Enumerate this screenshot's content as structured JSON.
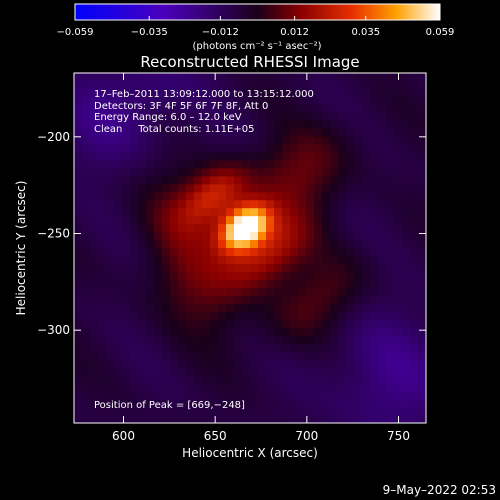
{
  "chart_data": {
    "type": "heatmap",
    "title": "Reconstructed RHESSI Image",
    "xlabel": "Heliocentric X (arcsec)",
    "ylabel": "Heliocentric Y (arcsec)",
    "xlim": [
      573,
      765
    ],
    "ylim": [
      -348,
      -167
    ],
    "xticks": [
      600,
      650,
      700,
      750
    ],
    "yticks": [
      -200,
      -250,
      -300
    ],
    "colorbar": {
      "min": -0.059,
      "max": 0.059,
      "ticks": [
        -0.059,
        -0.035,
        -0.012,
        0.012,
        0.035,
        0.059
      ],
      "tick_labels": [
        "−0.059",
        "−0.035",
        "−0.012",
        "0.012",
        "0.035",
        "0.059"
      ],
      "unit_label": "(photons cm⁻² s⁻¹ asec⁻²)"
    },
    "info_lines": [
      "17–Feb–2011 13:09:12.000 to 13:15:12.000",
      "Detectors: 3F 4F 5F 6F 7F 8F, Att 0",
      "Energy Range: 6.0 – 12.0 keV",
      "Clean     Total counts: 1.11E+05"
    ],
    "peak_label": "Position of Peak = [669,−248]",
    "peak": [
      669,
      -248
    ],
    "sources": [
      {
        "x": 666,
        "y": -247,
        "amp": 0.072,
        "sx": 10,
        "sy": 7
      },
      {
        "x": 650,
        "y": -230,
        "amp": 0.03,
        "sx": 14,
        "sy": 9
      },
      {
        "x": 678,
        "y": -260,
        "amp": 0.028,
        "sx": 18,
        "sy": 11
      },
      {
        "x": 695,
        "y": -220,
        "amp": 0.016,
        "sx": 22,
        "sy": 14
      },
      {
        "x": 640,
        "y": -275,
        "amp": 0.014,
        "sx": 16,
        "sy": 20
      },
      {
        "x": 705,
        "y": -285,
        "amp": 0.013,
        "sx": 22,
        "sy": 12
      },
      {
        "x": 630,
        "y": -240,
        "amp": 0.01,
        "sx": 14,
        "sy": 18
      },
      {
        "x": 600,
        "y": -185,
        "amp": -0.012,
        "sx": 30,
        "sy": 18
      },
      {
        "x": 745,
        "y": -325,
        "amp": -0.012,
        "sx": 25,
        "sy": 25
      }
    ]
  },
  "timestamp": "9–May–2022 02:53"
}
